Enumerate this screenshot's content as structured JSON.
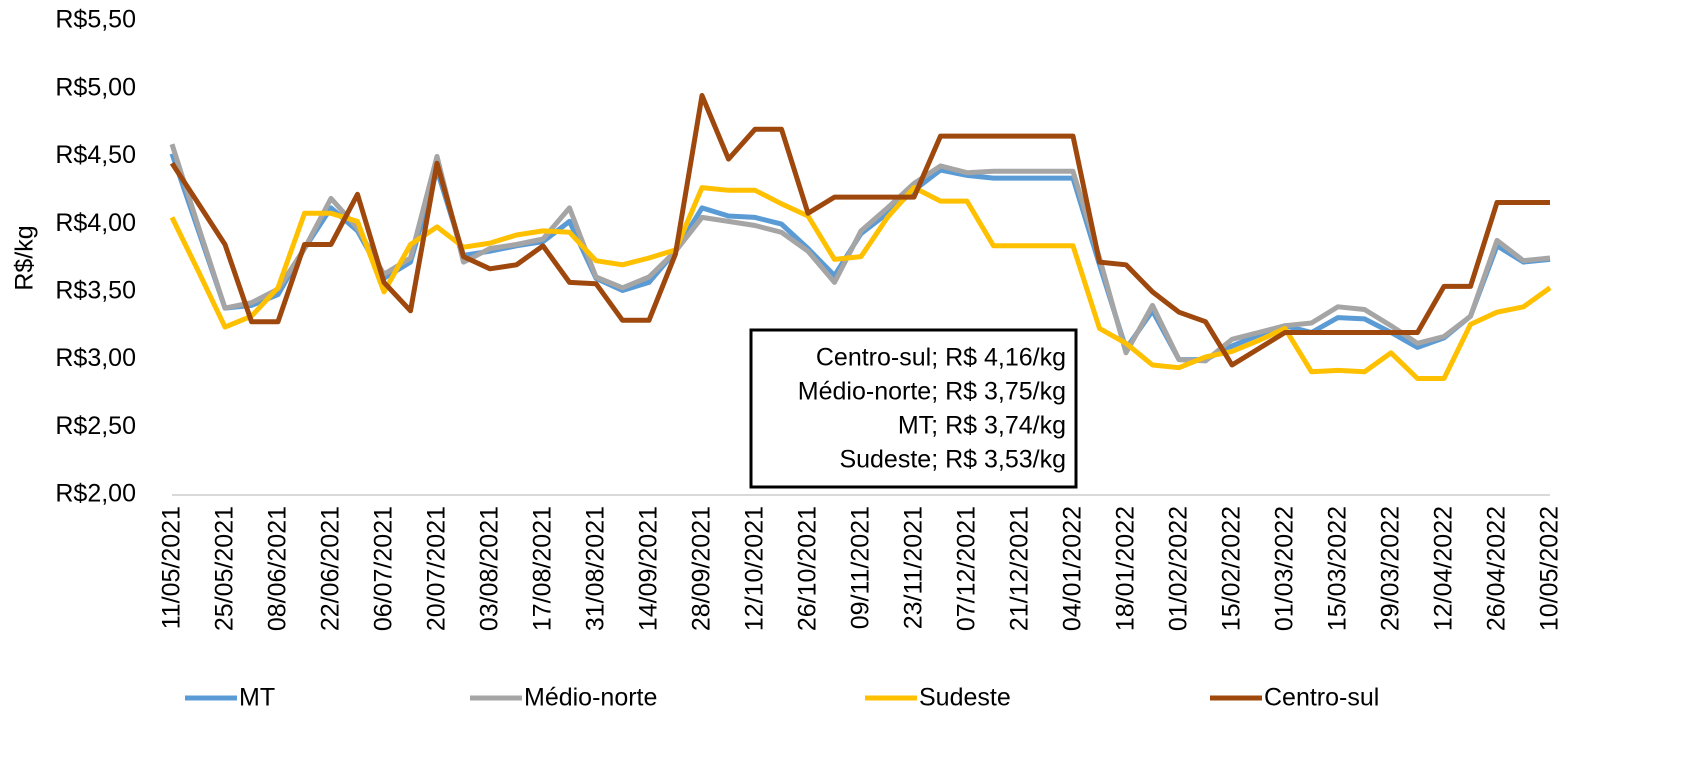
{
  "chart_data": {
    "type": "line",
    "ylabel": "R$/kg",
    "categories": [
      "11/05/2021",
      null,
      "25/05/2021",
      null,
      "08/06/2021",
      null,
      "22/06/2021",
      null,
      "06/07/2021",
      null,
      "20/07/2021",
      null,
      "03/08/2021",
      null,
      "17/08/2021",
      null,
      "31/08/2021",
      null,
      "14/09/2021",
      null,
      "28/09/2021",
      null,
      "12/10/2021",
      null,
      "26/10/2021",
      null,
      "09/11/2021",
      null,
      "23/11/2021",
      null,
      "07/12/2021",
      null,
      "21/12/2021",
      null,
      "04/01/2022",
      null,
      "18/01/2022",
      null,
      "01/02/2022",
      null,
      "15/02/2022",
      null,
      "01/03/2022",
      null,
      "15/03/2022",
      null,
      "29/03/2022",
      null,
      "12/04/2022",
      null,
      "26/04/2022",
      null,
      "10/05/2022"
    ],
    "series": [
      {
        "name": "MT",
        "color": "#5b9bd5",
        "values": [
          4.52,
          3.95,
          3.38,
          3.4,
          3.48,
          3.82,
          4.12,
          3.95,
          3.6,
          3.72,
          4.4,
          3.77,
          3.8,
          3.84,
          3.87,
          4.02,
          3.6,
          3.51,
          3.57,
          3.8,
          4.12,
          4.06,
          4.05,
          4.0,
          3.82,
          3.62,
          3.93,
          4.08,
          4.25,
          4.4,
          4.36,
          4.34,
          4.34,
          4.34,
          4.34,
          3.7,
          3.08,
          3.36,
          3.0,
          3.0,
          3.1,
          3.18,
          3.25,
          3.2,
          3.31,
          3.3,
          3.2,
          3.09,
          3.16,
          3.32,
          3.84,
          3.72,
          3.74
        ]
      },
      {
        "name": "Médio-norte",
        "color": "#a5a5a5",
        "values": [
          4.59,
          3.98,
          3.38,
          3.42,
          3.52,
          3.82,
          4.19,
          3.97,
          3.63,
          3.75,
          4.5,
          3.72,
          3.82,
          3.85,
          3.89,
          4.12,
          3.61,
          3.53,
          3.61,
          3.8,
          4.05,
          4.02,
          3.99,
          3.94,
          3.8,
          3.57,
          3.95,
          4.12,
          4.3,
          4.43,
          4.38,
          4.39,
          4.39,
          4.39,
          4.39,
          3.75,
          3.05,
          3.4,
          3.0,
          2.99,
          3.15,
          3.2,
          3.25,
          3.27,
          3.39,
          3.37,
          3.25,
          3.12,
          3.17,
          3.32,
          3.88,
          3.73,
          3.75
        ]
      },
      {
        "name": "Sudeste",
        "color": "#ffc000",
        "values": [
          4.05,
          3.65,
          3.24,
          3.32,
          3.53,
          4.08,
          4.08,
          4.02,
          3.5,
          3.85,
          3.98,
          3.83,
          3.86,
          3.92,
          3.95,
          3.94,
          3.73,
          3.7,
          3.75,
          3.81,
          4.27,
          4.25,
          4.25,
          4.15,
          4.06,
          3.74,
          3.76,
          4.05,
          4.27,
          4.17,
          4.17,
          3.84,
          3.84,
          3.84,
          3.84,
          3.23,
          3.12,
          2.96,
          2.94,
          3.02,
          3.06,
          3.14,
          3.23,
          2.91,
          2.92,
          2.91,
          3.05,
          2.86,
          2.86,
          3.26,
          3.35,
          3.39,
          3.53
        ]
      },
      {
        "name": "Centro-sul",
        "color": "#9e480e",
        "values": [
          4.45,
          4.15,
          3.85,
          3.28,
          3.28,
          3.85,
          3.85,
          4.22,
          3.57,
          3.36,
          4.45,
          3.76,
          3.67,
          3.7,
          3.84,
          3.57,
          3.56,
          3.29,
          3.29,
          3.78,
          4.95,
          4.48,
          4.7,
          4.7,
          4.08,
          4.2,
          4.2,
          4.2,
          4.2,
          4.65,
          4.65,
          4.65,
          4.65,
          4.65,
          4.65,
          3.72,
          3.7,
          3.5,
          3.35,
          3.28,
          2.96,
          3.08,
          3.2,
          3.2,
          3.2,
          3.2,
          3.2,
          3.2,
          3.54,
          3.54,
          4.16,
          4.16,
          4.16
        ]
      }
    ],
    "ylim": [
      2,
      5.5
    ],
    "yticks": [
      {
        "value": 2,
        "label": "R$2,00"
      },
      {
        "value": 2.5,
        "label": "R$2,50"
      },
      {
        "value": 3,
        "label": "R$3,00"
      },
      {
        "value": 3.5,
        "label": "R$3,50"
      },
      {
        "value": 4,
        "label": "R$4,00"
      },
      {
        "value": 4.5,
        "label": "R$4,50"
      },
      {
        "value": 5,
        "label": "R$5,00"
      },
      {
        "value": 5.5,
        "label": "R$5,50"
      }
    ],
    "grid": false,
    "legend": "bottom",
    "annotation": [
      "Centro-sul; R$ 4,16/kg",
      "Médio-norte; R$ 3,75/kg",
      "MT; R$ 3,74/kg",
      "Sudeste; R$ 3,53/kg"
    ]
  }
}
